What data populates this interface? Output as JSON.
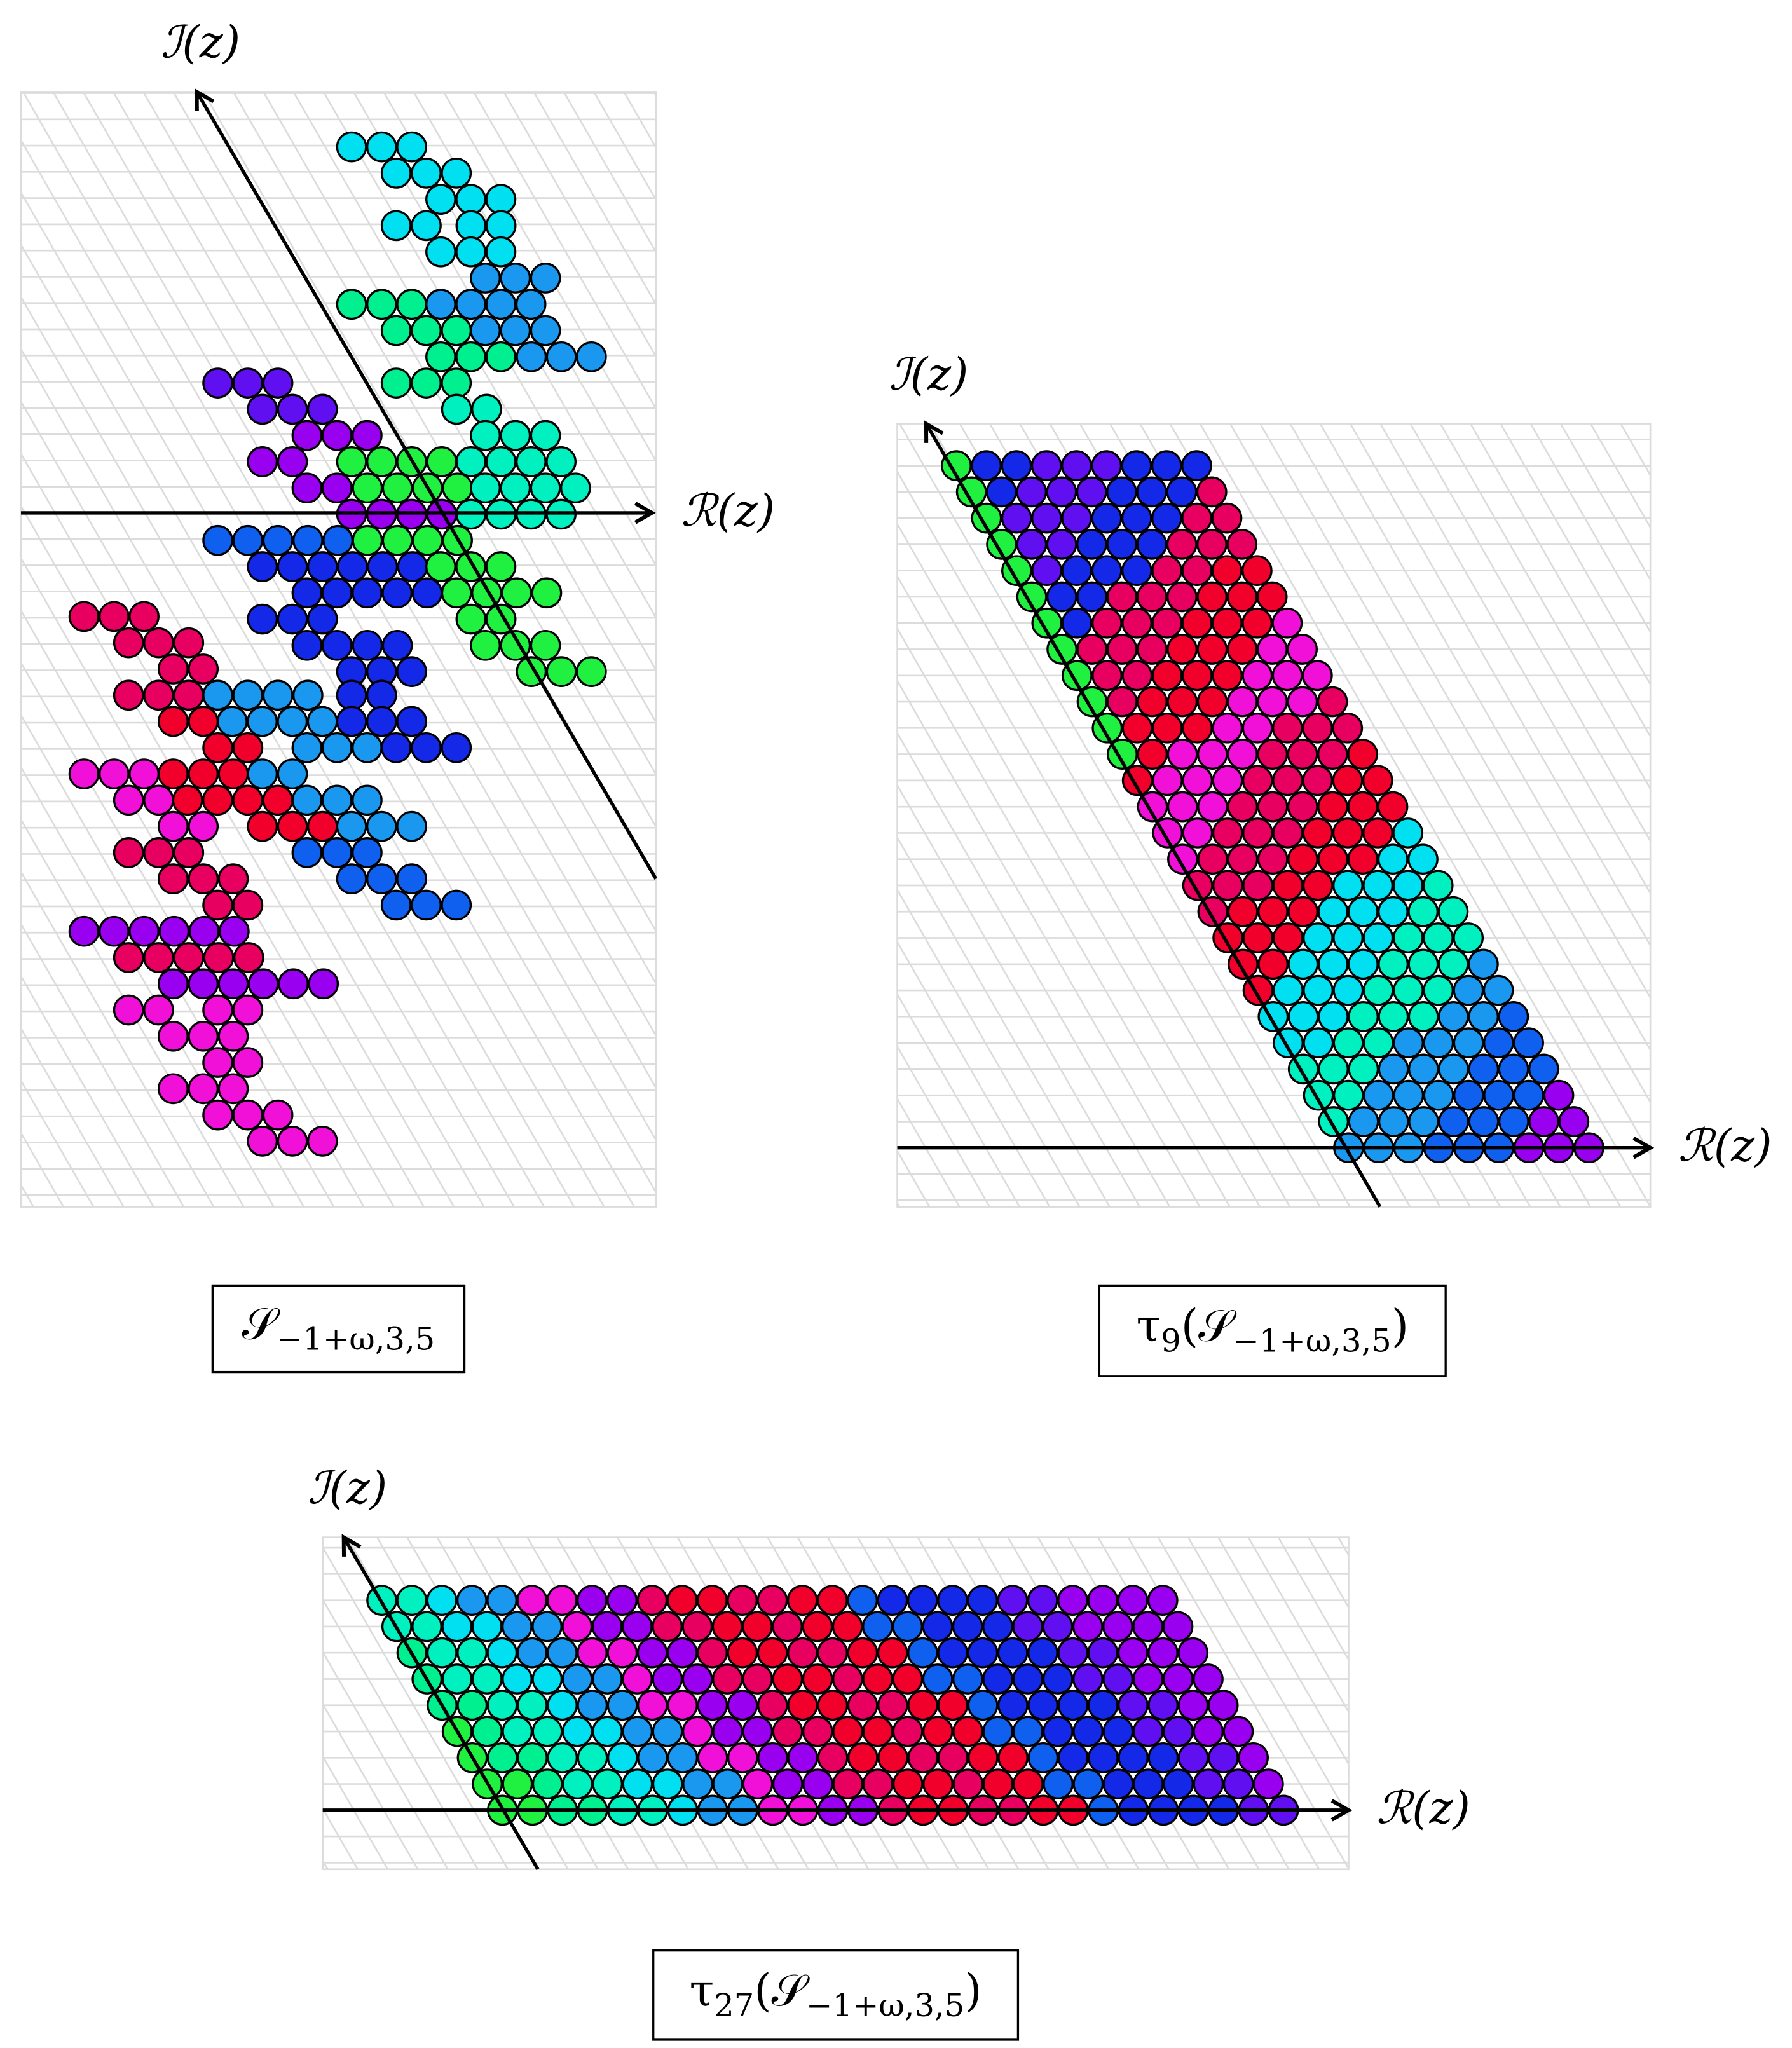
{
  "panels": [
    {
      "y_axis_label": "ℐ(z)",
      "x_axis_label": "ℛ(z)",
      "caption": [
        {
          "text": "𝒮"
        },
        {
          "sub": "−1+ω,3,5"
        }
      ]
    },
    {
      "y_axis_label": "ℐ(z)",
      "x_axis_label": "ℛ(z)",
      "caption": [
        {
          "text": "τ"
        },
        {
          "sub": "9"
        },
        {
          "text": "(𝒮"
        },
        {
          "sub": "−1+ω,3,5"
        },
        {
          "text": ")"
        }
      ]
    },
    {
      "y_axis_label": "ℐ(z)",
      "x_axis_label": "ℛ(z)",
      "caption": [
        {
          "text": "τ"
        },
        {
          "sub": "27"
        },
        {
          "text": "(𝒮"
        },
        {
          "sub": "−1+ω,3,5"
        },
        {
          "text": ")"
        }
      ]
    }
  ]
}
